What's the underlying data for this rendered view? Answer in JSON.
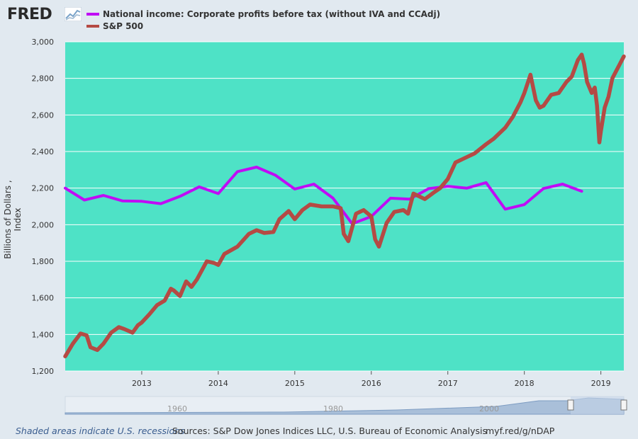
{
  "brand": {
    "logo_text": "FRED",
    "logo_icon": "fred-chart-icon"
  },
  "colors": {
    "plot_bg": "#4ee2c6",
    "page_bg": "#e1e9f0",
    "profits": "#c00cf5",
    "sp500": "#b54a44",
    "grid": "#ffffff",
    "navigator": "#a9bfd9"
  },
  "chart_data": {
    "type": "line",
    "title": "",
    "xlabel": "",
    "ylabel": "Billions of Dollars , Index",
    "xlim": [
      2012.0,
      2019.3
    ],
    "ylim": [
      1200,
      3000
    ],
    "yticks": [
      1200,
      1400,
      1600,
      1800,
      2000,
      2200,
      2400,
      2600,
      2800,
      3000
    ],
    "ytick_labels": [
      "1,200",
      "1,400",
      "1,600",
      "1,800",
      "2,000",
      "2,200",
      "2,400",
      "2,600",
      "2,800",
      "3,000"
    ],
    "xticks": [
      2013,
      2014,
      2015,
      2016,
      2017,
      2018,
      2019
    ],
    "xtick_labels": [
      "2013",
      "2014",
      "2015",
      "2016",
      "2017",
      "2018",
      "2019"
    ],
    "grid": true,
    "legend_position": "top-left",
    "series": [
      {
        "name": "National income: Corporate profits before tax (without IVA and CCAdj)",
        "style": "line",
        "x": [
          2012.0,
          2012.25,
          2012.5,
          2012.75,
          2013.0,
          2013.25,
          2013.5,
          2013.75,
          2014.0,
          2014.25,
          2014.5,
          2014.75,
          2015.0,
          2015.25,
          2015.5,
          2015.75,
          2016.0,
          2016.25,
          2016.5,
          2016.75,
          2017.0,
          2017.25,
          2017.5,
          2017.75,
          2018.0,
          2018.25,
          2018.5,
          2018.75
        ],
        "values": [
          2200,
          2135,
          2160,
          2130,
          2128,
          2115,
          2155,
          2207,
          2170,
          2290,
          2315,
          2270,
          2195,
          2222,
          2145,
          2005,
          2045,
          2145,
          2140,
          2197,
          2210,
          2200,
          2230,
          2085,
          2110,
          2198,
          2222,
          2183
        ]
      },
      {
        "name": "S&P 500",
        "style": "bar",
        "x": [
          2012.0,
          2012.1,
          2012.2,
          2012.28,
          2012.33,
          2012.42,
          2012.5,
          2012.6,
          2012.7,
          2012.77,
          2012.88,
          2012.95,
          2013.0,
          2013.1,
          2013.2,
          2013.3,
          2013.38,
          2013.42,
          2013.5,
          2013.58,
          2013.65,
          2013.72,
          2013.85,
          2013.95,
          2014.0,
          2014.08,
          2014.25,
          2014.4,
          2014.5,
          2014.6,
          2014.72,
          2014.8,
          2014.92,
          2015.0,
          2015.1,
          2015.2,
          2015.35,
          2015.5,
          2015.6,
          2015.64,
          2015.7,
          2015.8,
          2015.9,
          2016.0,
          2016.05,
          2016.1,
          2016.2,
          2016.3,
          2016.42,
          2016.48,
          2016.55,
          2016.7,
          2016.83,
          2016.9,
          2017.0,
          2017.1,
          2017.2,
          2017.35,
          2017.5,
          2017.6,
          2017.75,
          2017.85,
          2017.95,
          2018.0,
          2018.08,
          2018.15,
          2018.2,
          2018.25,
          2018.35,
          2018.45,
          2018.55,
          2018.62,
          2018.7,
          2018.75,
          2018.78,
          2018.82,
          2018.88,
          2018.92,
          2018.95,
          2018.98,
          2019.0,
          2019.05,
          2019.1,
          2019.15,
          2019.2,
          2019.25,
          2019.3
        ],
        "values": [
          1280,
          1350,
          1405,
          1395,
          1330,
          1315,
          1350,
          1410,
          1440,
          1430,
          1410,
          1450,
          1465,
          1510,
          1560,
          1585,
          1650,
          1640,
          1610,
          1690,
          1660,
          1700,
          1800,
          1790,
          1780,
          1840,
          1880,
          1950,
          1970,
          1955,
          1960,
          2030,
          2075,
          2030,
          2080,
          2110,
          2100,
          2100,
          2090,
          1950,
          1910,
          2060,
          2080,
          2045,
          1920,
          1880,
          2010,
          2070,
          2080,
          2060,
          2170,
          2140,
          2180,
          2200,
          2250,
          2340,
          2360,
          2390,
          2440,
          2470,
          2530,
          2590,
          2670,
          2720,
          2820,
          2680,
          2640,
          2650,
          2710,
          2720,
          2780,
          2810,
          2900,
          2930,
          2880,
          2780,
          2720,
          2750,
          2650,
          2450,
          2510,
          2640,
          2700,
          2800,
          2840,
          2880,
          2920
        ]
      }
    ]
  },
  "navigator": {
    "labels": [
      "1960",
      "1980",
      "2000"
    ]
  },
  "footer": {
    "recession_note": "Shaded areas indicate U.S. recessions",
    "sources": "Sources: S&P Dow Jones Indices LLC, U.S. Bureau of Economic Analysis",
    "link": "myf.red/g/nDAP"
  }
}
